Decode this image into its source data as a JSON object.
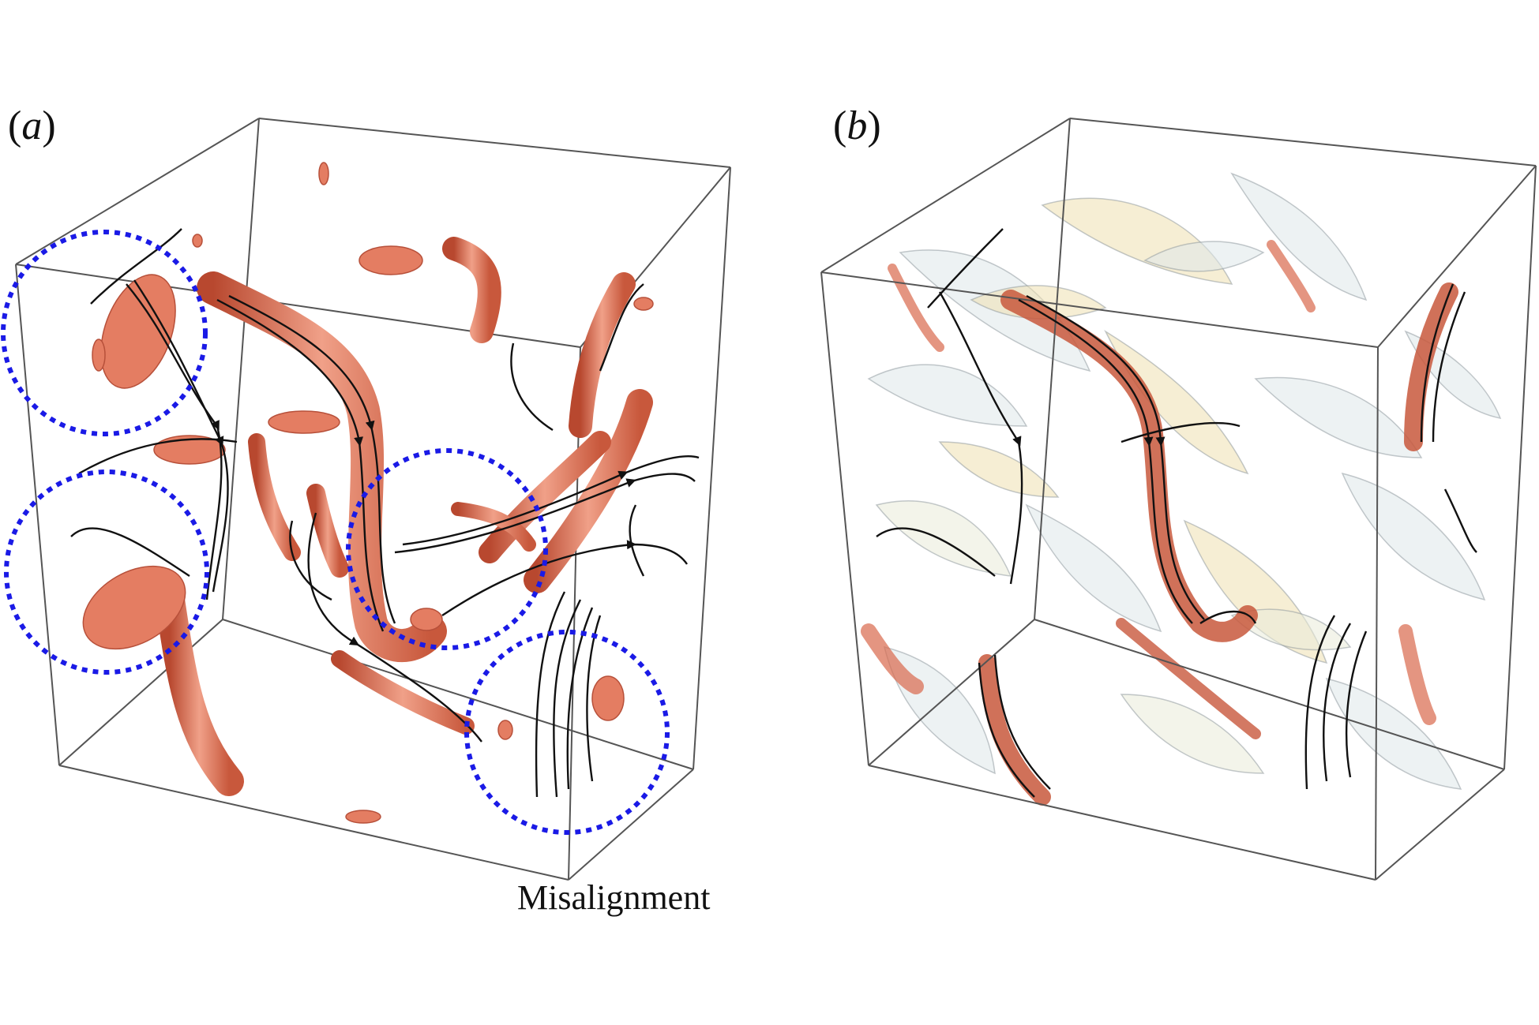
{
  "panels": [
    {
      "id": "a",
      "letter": "a"
    },
    {
      "id": "b",
      "letter": "b"
    }
  ],
  "annotation": "Misalignment",
  "colors": {
    "vortex": "#e07a5f",
    "vortex_dark": "#b44a33",
    "streamline": "#111111",
    "circle": "#1a1ae6",
    "box": "#555555",
    "iso_light": "#dfe7ea",
    "iso_yellow": "#eee0b0"
  }
}
